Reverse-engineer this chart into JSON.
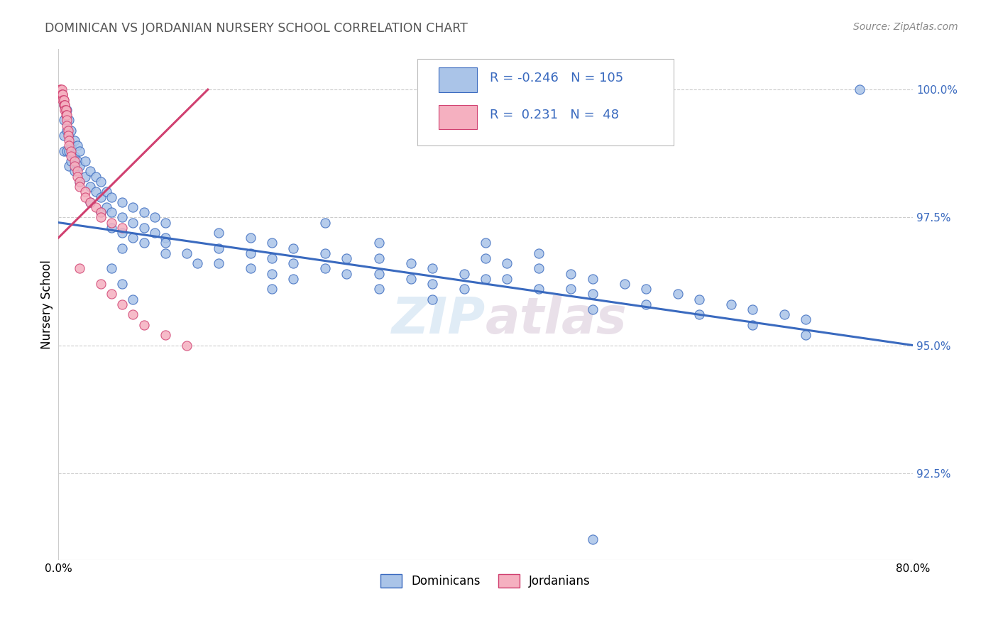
{
  "title": "DOMINICAN VS JORDANIAN NURSERY SCHOOL CORRELATION CHART",
  "source": "Source: ZipAtlas.com",
  "ylabel": "Nursery School",
  "ytick_labels": [
    "92.5%",
    "95.0%",
    "97.5%",
    "100.0%"
  ],
  "ytick_values": [
    0.925,
    0.95,
    0.975,
    1.0
  ],
  "xmin": 0.0,
  "xmax": 0.8,
  "ymin": 0.908,
  "ymax": 1.008,
  "dominican_color": "#aac4e8",
  "jordanian_color": "#f5b0c0",
  "dominican_line_color": "#3a6abf",
  "jordanian_line_color": "#d04070",
  "blue_text_color": "#3a6abf",
  "title_color": "#555555",
  "source_color": "#888888",
  "R_dominican": -0.246,
  "N_dominican": 105,
  "R_jordanian": 0.231,
  "N_jordanian": 48,
  "watermark": "ZIPatlas",
  "dom_line_x0": 0.0,
  "dom_line_y0": 0.974,
  "dom_line_x1": 0.8,
  "dom_line_y1": 0.95,
  "jord_line_x0": 0.0,
  "jord_line_y0": 0.971,
  "jord_line_x1": 0.14,
  "jord_line_y1": 1.0
}
